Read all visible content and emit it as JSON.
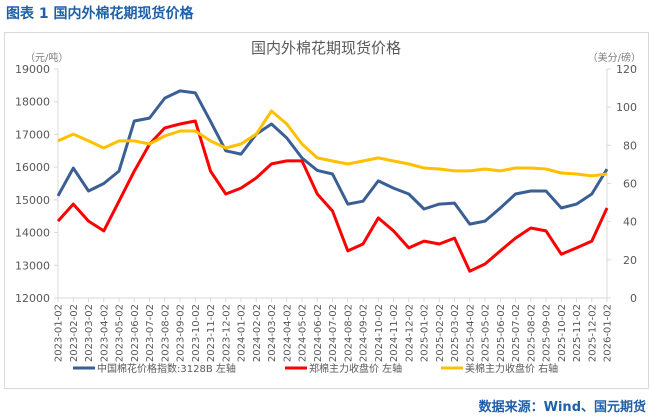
{
  "header": {
    "figure_title": "图表 1  国内外棉花期现货价格"
  },
  "footer": {
    "source": "数据来源：Wind、国元期货"
  },
  "chart_data": {
    "type": "line",
    "title": "国内外棉花期现货价格",
    "ylabel_left": "（元/吨）",
    "ylabel_right": "（美分/磅）",
    "ylim_left": [
      12000,
      19000
    ],
    "ylim_right": [
      0,
      120
    ],
    "yticks_left": [
      "12000",
      "13000",
      "14000",
      "15000",
      "16000",
      "17000",
      "18000",
      "19000"
    ],
    "yticks_right": [
      "0",
      "20",
      "40",
      "60",
      "80",
      "100",
      "120"
    ],
    "grid": false,
    "legend": "bottom",
    "x": [
      "2023-01-02",
      "2023-02-02",
      "2023-03-02",
      "2023-04-02",
      "2023-05-02",
      "2023-06-02",
      "2023-07-02",
      "2023-08-02",
      "2023-09-02",
      "2023-10-02",
      "2023-11-02",
      "2023-12-02",
      "2024-01-02",
      "2024-02-02",
      "2024-03-02",
      "2024-04-02",
      "2024-05-02",
      "2024-06-02",
      "2024-07-02",
      "2024-08-02",
      "2024-09-02",
      "2024-10-02",
      "2024-11-02",
      "2024-12-02",
      "2025-01-02",
      "2025-02-02",
      "2025-03-02",
      "2025-04-02",
      "2025-05-02",
      "2025-06-02",
      "2025-07-02",
      "2025-08-02",
      "2025-09-02",
      "2025-10-02",
      "2025-11-02",
      "2025-12-02",
      "2026-01-02"
    ],
    "series": [
      {
        "name": "中国棉花价格指数:3128B  左轴",
        "axis": "left",
        "color": "#3a5f94",
        "values": [
          15120,
          15970,
          15270,
          15500,
          15880,
          17410,
          17500,
          18110,
          18330,
          18270,
          17400,
          16500,
          16400,
          17010,
          17320,
          16890,
          16280,
          15900,
          15790,
          14870,
          14960,
          15580,
          15360,
          15180,
          14720,
          14870,
          14900,
          14260,
          14350,
          14750,
          15180,
          15270,
          15270,
          14750,
          14870,
          15180,
          15940
        ]
      },
      {
        "name": "郑棉主力收盘价  左轴",
        "axis": "left",
        "color": "#ff0000",
        "values": [
          14350,
          14870,
          14350,
          14050,
          14960,
          15880,
          16700,
          17200,
          17320,
          17410,
          15880,
          15180,
          15360,
          15670,
          16100,
          16190,
          16190,
          15180,
          14660,
          13440,
          13650,
          14450,
          14050,
          13530,
          13740,
          13650,
          13830,
          12820,
          13040,
          13440,
          13830,
          14140,
          14050,
          13340,
          13530,
          13740,
          14750
        ]
      },
      {
        "name": "美棉主力收盘价  右轴",
        "axis": "right",
        "color": "#ffc000",
        "values": [
          82.3,
          85.9,
          82.3,
          78.6,
          82.3,
          82.3,
          80.7,
          84.9,
          87.5,
          87.5,
          82.3,
          78.6,
          80.7,
          85.9,
          98,
          91.2,
          80.7,
          73.4,
          71.8,
          70.2,
          71.8,
          73.4,
          71.8,
          70.2,
          68.1,
          67.6,
          66.6,
          66.6,
          67.6,
          66.6,
          68.1,
          68.1,
          67.6,
          65.5,
          65,
          64,
          65
        ]
      }
    ]
  }
}
